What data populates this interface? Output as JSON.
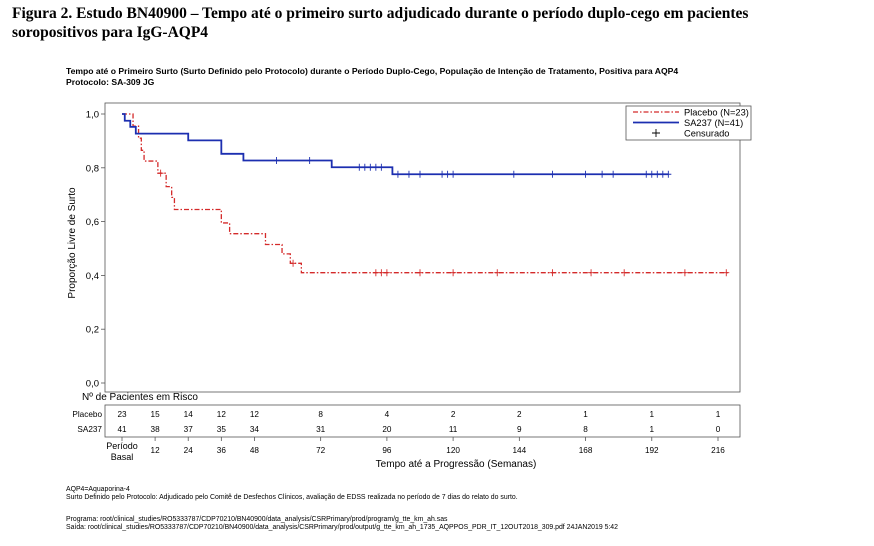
{
  "heading": {
    "line1": "Figura 2. Estudo BN40900 – Tempo até o primeiro surto adjudicado durante o período duplo-cego em pacientes",
    "line2": "soropositivos para IgG-AQP4"
  },
  "chart_title": {
    "line1": "Tempo até o Primeiro Surto (Surto Definido pelo Protocolo) durante o Período Duplo-Cego, População de Intenção de Tratamento, Positiva para AQP4",
    "line2": "Protocolo: SA-309 JG"
  },
  "footnotes": {
    "abbrev": "AQP4=Aquaporina-4",
    "definition": "Surto Definido pelo Protocolo: Adjudicado pelo Comitê de Desfechos Clínicos, avaliação de EDSS realizada no período de 7 dias do relato do surto.",
    "program": "Programa: root/clinical_studies/RO5333787/CDP70210/BN40900/data_analysis/CSRPrimary/prod/program/g_tte_km_ah.sas",
    "output": "Saída: root/clinical_studies/RO5333787/CDP70210/BN40900/data_analysis/CSRPrimary/prod/output/g_tte_km_ah_1735_AQPPOS_PDR_IT_12OUT2018_309.pdf 24JAN2019 5:42"
  },
  "chart_data": {
    "type": "line",
    "ylabel": "Proporção Livre de Surto",
    "xlabel": "Tempo até a Progressão (Semanas)",
    "xlim": [
      0,
      216
    ],
    "ylim": [
      0,
      1
    ],
    "y_ticks": [
      "0,0",
      "0,2",
      "0,4",
      "0,6",
      "0,8",
      "1,0"
    ],
    "x_ticks": [
      0,
      12,
      24,
      36,
      48,
      72,
      96,
      120,
      144,
      168,
      192,
      216
    ],
    "x_tick_labels": [
      "12",
      "24",
      "36",
      "48",
      "72",
      "96",
      "120",
      "144",
      "168",
      "192",
      "216"
    ],
    "baseline_label_line1": "Período",
    "baseline_label_line2": "Basal",
    "legend_position": "top-right",
    "legend": [
      {
        "label": "Placebo (N=23)",
        "symbol": "dash-dot-line",
        "color": "#d42a2a"
      },
      {
        "label": "SA237 (N=41)",
        "symbol": "solid-line",
        "color": "#1c2fb0"
      },
      {
        "label": "Censurado",
        "symbol": "plus",
        "color": "#000000"
      }
    ],
    "series": [
      {
        "name": "Placebo",
        "color": "#d42a2a",
        "style": "dash-dot",
        "steps": [
          [
            0,
            1.0
          ],
          [
            4,
            0.955
          ],
          [
            6,
            0.91
          ],
          [
            7,
            0.865
          ],
          [
            8,
            0.825
          ],
          [
            13,
            0.78
          ],
          [
            16,
            0.73
          ],
          [
            18,
            0.69
          ],
          [
            19,
            0.645
          ],
          [
            36,
            0.595
          ],
          [
            39,
            0.555
          ],
          [
            52,
            0.515
          ],
          [
            58,
            0.48
          ],
          [
            61,
            0.445
          ],
          [
            65,
            0.41
          ],
          [
            220,
            0.41
          ]
        ],
        "censored": [
          [
            14,
            0.78
          ],
          [
            62,
            0.445
          ],
          [
            92,
            0.41
          ],
          [
            94,
            0.41
          ],
          [
            96,
            0.41
          ],
          [
            108,
            0.41
          ],
          [
            120,
            0.41
          ],
          [
            136,
            0.41
          ],
          [
            156,
            0.41
          ],
          [
            170,
            0.41
          ],
          [
            182,
            0.41
          ],
          [
            204,
            0.41
          ],
          [
            219,
            0.41
          ]
        ]
      },
      {
        "name": "SA237",
        "color": "#1c2fb0",
        "style": "solid",
        "steps": [
          [
            0,
            1.0
          ],
          [
            1,
            0.975
          ],
          [
            3,
            0.952
          ],
          [
            5,
            0.927
          ],
          [
            24,
            0.902
          ],
          [
            36,
            0.852
          ],
          [
            44,
            0.827
          ],
          [
            76,
            0.802
          ],
          [
            98,
            0.776
          ],
          [
            198,
            0.776
          ]
        ],
        "censored": [
          [
            56,
            0.827
          ],
          [
            68,
            0.827
          ],
          [
            86,
            0.802
          ],
          [
            88,
            0.802
          ],
          [
            90,
            0.802
          ],
          [
            92,
            0.802
          ],
          [
            94,
            0.802
          ],
          [
            100,
            0.776
          ],
          [
            104,
            0.776
          ],
          [
            108,
            0.776
          ],
          [
            116,
            0.776
          ],
          [
            118,
            0.776
          ],
          [
            120,
            0.776
          ],
          [
            142,
            0.776
          ],
          [
            156,
            0.776
          ],
          [
            168,
            0.776
          ],
          [
            174,
            0.776
          ],
          [
            178,
            0.776
          ],
          [
            190,
            0.776
          ],
          [
            192,
            0.776
          ],
          [
            194,
            0.776
          ],
          [
            196,
            0.776
          ],
          [
            198,
            0.776
          ]
        ]
      }
    ],
    "at_risk": {
      "title": "Nº de Pacientes em Risco",
      "times": [
        0,
        12,
        24,
        36,
        48,
        72,
        96,
        120,
        144,
        168,
        192,
        216
      ],
      "rows": [
        {
          "label": "Placebo",
          "values": [
            "23",
            "15",
            "14",
            "12",
            "12",
            "8",
            "4",
            "2",
            "2",
            "1",
            "1",
            "1"
          ]
        },
        {
          "label": "SA237",
          "values": [
            "41",
            "38",
            "37",
            "35",
            "34",
            "31",
            "20",
            "11",
            "9",
            "8",
            "1",
            "0"
          ]
        }
      ]
    }
  }
}
